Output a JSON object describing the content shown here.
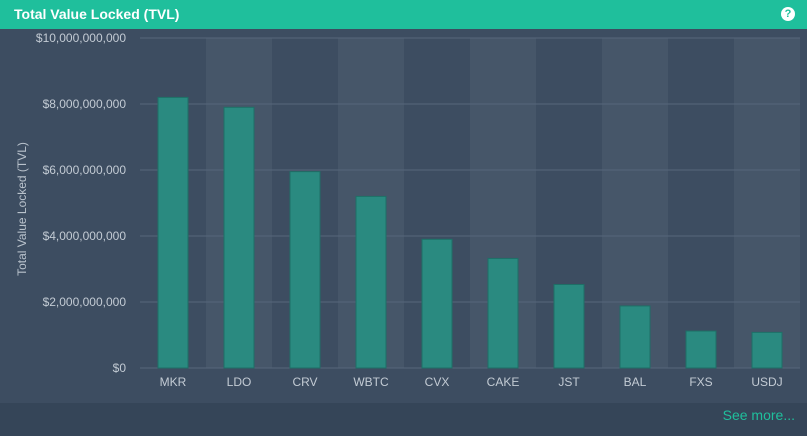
{
  "header": {
    "title": "Total Value Locked (TVL)",
    "help_icon": "question-circle-icon"
  },
  "footer": {
    "see_more": "See more..."
  },
  "colors": {
    "header_bg": "#1fbf9c",
    "bar_fill": "#2a8a80",
    "bar_stroke": "#1e6f66",
    "link": "#1fbf9c"
  },
  "chart_data": {
    "type": "bar",
    "title": "",
    "xlabel": "",
    "ylabel": "Total Value Locked (TVL)",
    "categories": [
      "MKR",
      "LDO",
      "CRV",
      "WBTC",
      "CVX",
      "CAKE",
      "JST",
      "BAL",
      "FXS",
      "USDJ"
    ],
    "values": [
      8200000000,
      7900000000,
      5950000000,
      5200000000,
      3900000000,
      3320000000,
      2530000000,
      1880000000,
      1120000000,
      1080000000
    ],
    "ylim": [
      0,
      10000000000
    ],
    "yticks": [
      "$0",
      "$2,000,000,000",
      "$4,000,000,000",
      "$6,000,000,000",
      "$8,000,000,000",
      "$10,000,000,000"
    ],
    "grid": true,
    "legend": "none"
  }
}
